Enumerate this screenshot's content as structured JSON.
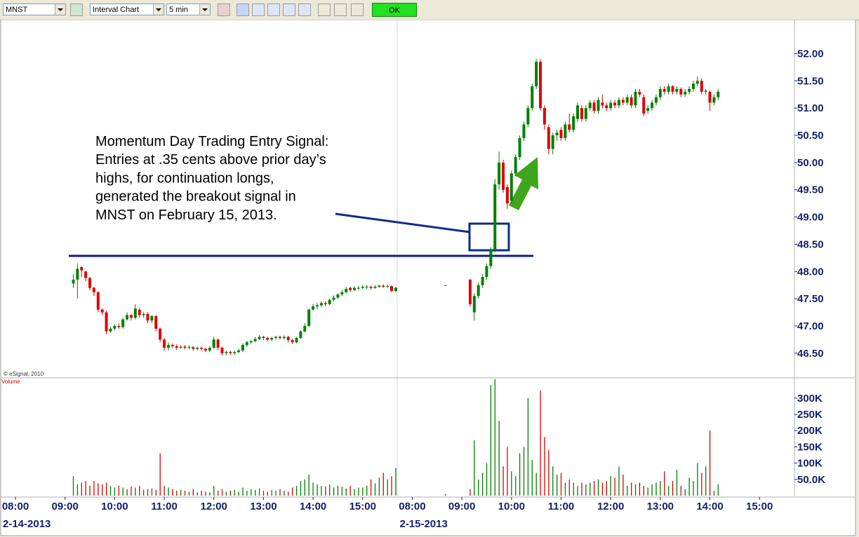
{
  "toolbar": {
    "symbol": "MNST",
    "chart_type": "Interval Chart",
    "interval": "5 min",
    "ok": "OK"
  },
  "chart_data": {
    "type": "candlestick",
    "copyright": "© eSignal, 2010",
    "annotation": [
      "Momentum Day Trading Entry Signal:",
      "Entries at .35 cents above prior day’s",
      "highs, for continuation longs,",
      "generated the breakout signal in",
      "MNST on February 15, 2013."
    ],
    "up_color": "#008000",
    "down_color": "#e00000",
    "categories": [
      "08:00",
      null,
      null,
      null,
      null,
      null,
      null,
      null,
      null,
      null,
      null,
      null,
      "09:00",
      null,
      null,
      null,
      null,
      null,
      null,
      null,
      null,
      null,
      null,
      null,
      "10:00",
      null,
      null,
      null,
      null,
      null,
      null,
      null,
      null,
      null,
      null,
      null,
      "11:00",
      null,
      null,
      null,
      null,
      null,
      null,
      null,
      null,
      null,
      null,
      null,
      "12:00",
      null,
      null,
      null,
      null,
      null,
      null,
      null,
      null,
      null,
      null,
      null,
      "13:00",
      null,
      null,
      null,
      null,
      null,
      null,
      null,
      null,
      null,
      null,
      null,
      "14:00",
      null,
      null,
      null,
      null,
      null,
      null,
      null,
      null,
      null,
      null,
      null,
      "15:00",
      null,
      null,
      null,
      null,
      null,
      null,
      null,
      null,
      null,
      null,
      null,
      "08:00",
      null,
      null,
      null,
      null,
      null,
      null,
      null,
      null,
      null,
      null,
      null,
      "09:00",
      null,
      null,
      null,
      null,
      null,
      null,
      null,
      null,
      null,
      null,
      null,
      "10:00",
      null,
      null,
      null,
      null,
      null,
      null,
      null,
      null,
      null,
      null,
      null,
      "11:00",
      null,
      null,
      null,
      null,
      null,
      null,
      null,
      null,
      null,
      null,
      null,
      "12:00",
      null,
      null,
      null,
      null,
      null,
      null,
      null,
      null,
      null,
      null,
      null,
      "13:00",
      null,
      null,
      null,
      null,
      null,
      null,
      null,
      null,
      null,
      null,
      null,
      "14:00",
      null,
      null,
      null,
      null,
      null,
      null,
      null,
      null,
      null,
      null,
      null,
      "15:00",
      null,
      null,
      null,
      null,
      null,
      null,
      null,
      null
    ],
    "date_labels": [
      "2-14-2013",
      "2-15-2013"
    ],
    "ohlc": [
      null,
      null,
      null,
      null,
      null,
      null,
      null,
      null,
      null,
      null,
      null,
      null,
      null,
      null,
      [
        47.78,
        47.95,
        47.7,
        47.85
      ],
      [
        47.85,
        48.15,
        47.5,
        48.05
      ],
      [
        48.08,
        48.1,
        47.9,
        48.02
      ],
      [
        48.0,
        48.02,
        47.82,
        47.88
      ],
      [
        47.88,
        47.9,
        47.65,
        47.7
      ],
      [
        47.7,
        47.72,
        47.55,
        47.62
      ],
      [
        47.62,
        47.64,
        47.25,
        47.3
      ],
      [
        47.3,
        47.32,
        47.2,
        47.25
      ],
      [
        47.25,
        47.28,
        46.85,
        46.9
      ],
      [
        46.9,
        46.98,
        46.88,
        46.95
      ],
      [
        46.95,
        47.03,
        46.92,
        47.0
      ],
      [
        47.0,
        47.05,
        46.95,
        46.98
      ],
      [
        46.98,
        47.15,
        46.95,
        47.12
      ],
      [
        47.12,
        47.25,
        47.1,
        47.2
      ],
      [
        47.2,
        47.22,
        47.1,
        47.15
      ],
      [
        47.15,
        47.4,
        47.12,
        47.32
      ],
      [
        47.3,
        47.33,
        47.15,
        47.2
      ],
      [
        47.2,
        47.25,
        47.15,
        47.22
      ],
      [
        47.22,
        47.25,
        47.05,
        47.1
      ],
      [
        47.1,
        47.2,
        47.05,
        47.18
      ],
      [
        47.18,
        47.2,
        46.9,
        46.95
      ],
      [
        46.95,
        46.97,
        46.7,
        46.75
      ],
      [
        46.75,
        46.78,
        46.55,
        46.6
      ],
      [
        46.6,
        46.7,
        46.55,
        46.65
      ],
      [
        46.65,
        46.68,
        46.6,
        46.63
      ],
      [
        46.63,
        46.66,
        46.56,
        46.6
      ],
      [
        46.6,
        46.65,
        46.58,
        46.62
      ],
      [
        46.62,
        46.65,
        46.57,
        46.6
      ],
      [
        46.6,
        46.64,
        46.57,
        46.61
      ],
      [
        46.61,
        46.63,
        46.55,
        46.58
      ],
      [
        46.58,
        46.62,
        46.55,
        46.6
      ],
      [
        46.6,
        46.62,
        46.55,
        46.58
      ],
      [
        46.58,
        46.6,
        46.52,
        46.55
      ],
      [
        46.55,
        46.63,
        46.52,
        46.6
      ],
      [
        46.6,
        46.8,
        46.58,
        46.75
      ],
      [
        46.75,
        46.77,
        46.56,
        46.6
      ],
      [
        46.6,
        46.62,
        46.46,
        46.5
      ],
      [
        46.5,
        46.55,
        46.46,
        46.52
      ],
      [
        46.52,
        46.55,
        46.47,
        46.5
      ],
      [
        46.5,
        46.55,
        46.47,
        46.52
      ],
      [
        46.52,
        46.58,
        46.5,
        46.55
      ],
      [
        46.55,
        46.68,
        46.52,
        46.65
      ],
      [
        46.65,
        46.73,
        46.62,
        46.7
      ],
      [
        46.7,
        46.75,
        46.67,
        46.72
      ],
      [
        46.72,
        46.8,
        46.7,
        46.76
      ],
      [
        46.76,
        46.83,
        46.74,
        46.8
      ],
      [
        46.8,
        46.82,
        46.74,
        46.78
      ],
      [
        46.78,
        46.8,
        46.72,
        46.75
      ],
      [
        46.75,
        46.8,
        46.72,
        46.78
      ],
      [
        46.78,
        46.82,
        46.75,
        46.8
      ],
      [
        46.8,
        46.82,
        46.75,
        46.78
      ],
      [
        46.78,
        46.83,
        46.75,
        46.8
      ],
      [
        46.8,
        46.82,
        46.7,
        46.74
      ],
      [
        46.74,
        46.76,
        46.67,
        46.7
      ],
      [
        46.7,
        46.8,
        46.68,
        46.78
      ],
      [
        46.78,
        46.92,
        46.76,
        46.9
      ],
      [
        46.9,
        47.05,
        46.88,
        47.0
      ],
      [
        47.0,
        47.32,
        46.98,
        47.3
      ],
      [
        47.3,
        47.4,
        47.28,
        47.36
      ],
      [
        47.36,
        47.42,
        47.3,
        47.38
      ],
      [
        47.38,
        47.45,
        47.35,
        47.42
      ],
      [
        47.42,
        47.46,
        47.36,
        47.4
      ],
      [
        47.4,
        47.5,
        47.38,
        47.48
      ],
      [
        47.48,
        47.56,
        47.45,
        47.52
      ],
      [
        47.52,
        47.6,
        47.5,
        47.58
      ],
      [
        47.58,
        47.66,
        47.55,
        47.62
      ],
      [
        47.62,
        47.72,
        47.6,
        47.68
      ],
      [
        47.7,
        47.72,
        47.62,
        47.66
      ],
      [
        47.66,
        47.73,
        47.64,
        47.7
      ],
      [
        47.7,
        47.74,
        47.66,
        47.7
      ],
      [
        47.7,
        47.75,
        47.68,
        47.72
      ],
      [
        47.72,
        47.75,
        47.68,
        47.72
      ],
      [
        47.72,
        47.74,
        47.67,
        47.7
      ],
      [
        47.7,
        47.75,
        47.68,
        47.72
      ],
      [
        47.72,
        47.76,
        47.7,
        47.74
      ],
      [
        47.74,
        47.76,
        47.7,
        47.72
      ],
      [
        47.72,
        47.76,
        47.7,
        47.73
      ],
      [
        47.73,
        47.75,
        47.62,
        47.64
      ],
      [
        47.64,
        47.72,
        47.62,
        47.7
      ],
      null,
      null,
      null,
      null,
      null,
      null,
      null,
      null,
      null,
      null,
      null,
      [
        47.75,
        47.75,
        47.75,
        47.75
      ],
      null,
      null,
      null,
      null,
      null,
      [
        47.85,
        47.86,
        47.35,
        47.4
      ],
      [
        47.25,
        47.6,
        47.1,
        47.55
      ],
      [
        47.55,
        47.8,
        47.5,
        47.75
      ],
      [
        47.75,
        47.95,
        47.7,
        47.9
      ],
      [
        47.9,
        48.15,
        47.85,
        48.1
      ],
      [
        48.1,
        48.45,
        48.05,
        48.4
      ],
      [
        48.4,
        49.7,
        48.35,
        49.6
      ],
      [
        49.6,
        50.2,
        49.5,
        50.0
      ],
      [
        50.0,
        50.05,
        49.45,
        49.5
      ],
      [
        49.55,
        49.6,
        49.15,
        49.25
      ],
      [
        49.3,
        49.85,
        49.25,
        49.8
      ],
      [
        49.8,
        50.15,
        49.75,
        50.1
      ],
      [
        50.1,
        50.5,
        50.05,
        50.45
      ],
      [
        50.45,
        50.75,
        50.4,
        50.7
      ],
      [
        50.7,
        51.05,
        50.65,
        51.0
      ],
      [
        51.0,
        51.45,
        50.95,
        51.4
      ],
      [
        51.4,
        51.9,
        51.35,
        51.85
      ],
      [
        51.85,
        51.9,
        50.95,
        51.0
      ],
      [
        51.0,
        51.05,
        50.6,
        50.7
      ],
      [
        50.65,
        50.7,
        50.15,
        50.25
      ],
      [
        50.25,
        50.55,
        50.15,
        50.5
      ],
      [
        50.5,
        50.6,
        50.4,
        50.55
      ],
      [
        50.6,
        50.65,
        50.4,
        50.45
      ],
      [
        50.45,
        50.75,
        50.4,
        50.7
      ],
      [
        50.7,
        50.9,
        50.55,
        50.6
      ],
      [
        50.6,
        50.9,
        50.55,
        50.85
      ],
      [
        50.8,
        51.1,
        50.75,
        51.05
      ],
      [
        51.0,
        51.05,
        50.75,
        50.8
      ],
      [
        50.8,
        51.05,
        50.75,
        51.0
      ],
      [
        51.0,
        51.15,
        50.95,
        51.1
      ],
      [
        51.1,
        51.15,
        50.9,
        50.95
      ],
      [
        50.95,
        51.2,
        50.9,
        51.15
      ],
      [
        51.1,
        51.25,
        51.0,
        51.05
      ],
      [
        51.05,
        51.1,
        50.95,
        51.0
      ],
      [
        51.0,
        51.15,
        50.95,
        51.1
      ],
      [
        51.1,
        51.15,
        51.0,
        51.05
      ],
      [
        51.05,
        51.2,
        51.0,
        51.15
      ],
      [
        51.15,
        51.2,
        51.05,
        51.1
      ],
      [
        51.1,
        51.25,
        51.05,
        51.2
      ],
      [
        51.2,
        51.25,
        51.0,
        51.05
      ],
      [
        51.05,
        51.35,
        51.0,
        51.3
      ],
      [
        51.3,
        51.35,
        51.2,
        51.25
      ],
      [
        51.2,
        51.25,
        50.85,
        50.9
      ],
      [
        50.95,
        51.05,
        50.9,
        51.0
      ],
      [
        51.0,
        51.15,
        50.95,
        51.1
      ],
      [
        51.1,
        51.25,
        51.05,
        51.2
      ],
      [
        51.2,
        51.4,
        51.15,
        51.35
      ],
      [
        51.35,
        51.4,
        51.25,
        51.3
      ],
      [
        51.3,
        51.45,
        51.25,
        51.4
      ],
      [
        51.4,
        51.42,
        51.25,
        51.3
      ],
      [
        51.3,
        51.4,
        51.25,
        51.35
      ],
      [
        51.35,
        51.38,
        51.2,
        51.25
      ],
      [
        51.25,
        51.35,
        51.2,
        51.3
      ],
      [
        51.3,
        51.4,
        51.25,
        51.35
      ],
      [
        51.35,
        51.5,
        51.3,
        51.45
      ],
      [
        51.45,
        51.58,
        51.4,
        51.5
      ],
      [
        51.5,
        51.55,
        51.25,
        51.3
      ],
      [
        51.3,
        51.35,
        51.25,
        51.32
      ],
      [
        51.3,
        51.32,
        50.95,
        51.1
      ],
      [
        51.1,
        51.25,
        51.05,
        51.2
      ],
      [
        51.2,
        51.35,
        51.15,
        51.3
      ],
      null,
      null,
      null,
      null,
      null,
      null,
      null,
      null,
      null,
      null,
      null,
      null,
      null,
      null,
      null,
      null,
      null,
      null
    ],
    "ylim": [
      46.06,
      52.56
    ],
    "yticks": [
      {
        "value": 46.5,
        "label": "46.50"
      },
      {
        "value": 47,
        "label": "47.00"
      },
      {
        "value": 47.5,
        "label": "47.50"
      },
      {
        "value": 48,
        "label": "48.00"
      },
      {
        "value": 48.5,
        "label": "48.50"
      },
      {
        "value": 49,
        "label": "49.00"
      },
      {
        "value": 49.5,
        "label": "49.50"
      },
      {
        "value": 50,
        "label": "50.00"
      },
      {
        "value": 50.5,
        "label": "50.50"
      },
      {
        "value": 51,
        "label": "51.00"
      },
      {
        "value": 51.5,
        "label": "51.50"
      },
      {
        "value": 52,
        "label": "52.00"
      }
    ],
    "volume": {
      "label": "Volume",
      "ylim": [
        0,
        360000
      ],
      "yticks": [
        {
          "value": 50000,
          "label": "50.0K"
        },
        {
          "value": 100000,
          "label": "100K"
        },
        {
          "value": 150000,
          "label": "150K"
        },
        {
          "value": 200000,
          "label": "200K"
        },
        {
          "value": 250000,
          "label": "250K"
        },
        {
          "value": 300000,
          "label": "300K"
        }
      ],
      "values": [
        null,
        null,
        null,
        null,
        null,
        null,
        null,
        null,
        null,
        null,
        null,
        null,
        null,
        null,
        60000,
        35000,
        40000,
        45000,
        30000,
        45000,
        38000,
        35000,
        40000,
        30000,
        25000,
        30000,
        25000,
        20000,
        28000,
        25000,
        30000,
        18000,
        20000,
        22000,
        18000,
        130000,
        30000,
        25000,
        20000,
        15000,
        18000,
        15000,
        12000,
        20000,
        10000,
        15000,
        12000,
        10000,
        30000,
        15000,
        20000,
        12000,
        15000,
        18000,
        12000,
        25000,
        15000,
        20000,
        18000,
        22000,
        15000,
        12000,
        18000,
        15000,
        20000,
        15000,
        12000,
        25000,
        30000,
        45000,
        50000,
        65000,
        40000,
        35000,
        30000,
        28000,
        35000,
        25000,
        30000,
        28000,
        22000,
        30000,
        20000,
        25000,
        25000,
        30000,
        50000,
        38000,
        55000,
        70000,
        50000,
        60000,
        85000,
        null,
        null,
        null,
        null,
        null,
        null,
        null,
        null,
        null,
        null,
        null,
        5000,
        null,
        null,
        null,
        null,
        null,
        20000,
        170000,
        50000,
        70000,
        100000,
        340000,
        358000,
        230000,
        90000,
        150000,
        75000,
        60000,
        130000,
        150000,
        300000,
        110000,
        70000,
        323000,
        180000,
        140000,
        90000,
        65000,
        70000,
        40000,
        50000,
        40000,
        30000,
        40000,
        35000,
        40000,
        45000,
        50000,
        40000,
        45000,
        60000,
        55000,
        90000,
        65000,
        30000,
        40000,
        35000,
        40000,
        30000,
        25000,
        35000,
        40000,
        45000,
        75000,
        30000,
        45000,
        80000,
        30000,
        20000,
        55000,
        45000,
        100000,
        70000,
        90000,
        200000,
        15000,
        35000,
        null,
        null,
        null,
        null,
        null,
        null,
        null,
        null,
        null,
        null,
        null,
        null,
        null,
        null,
        null,
        null,
        null,
        null
      ]
    }
  }
}
